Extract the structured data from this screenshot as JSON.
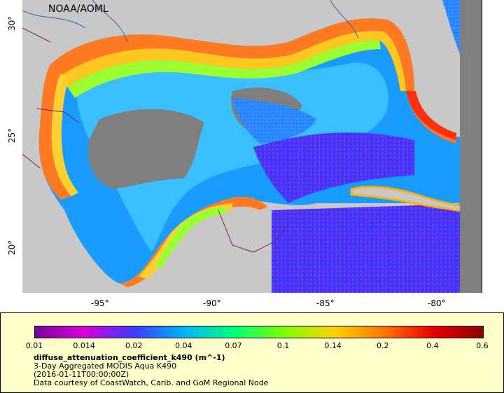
{
  "map": {
    "watermark": "NOAA/AOML",
    "x_ticks": [
      "-95°",
      "-90°",
      "-85°",
      "-80°"
    ],
    "y_ticks": [
      "30°",
      "25°",
      "20°"
    ],
    "colors": {
      "land": "#c8c8c8",
      "no_data": "#7f7f7f",
      "water_boundary": "#2e66a8",
      "border": "#7a1f5c"
    }
  },
  "legend": {
    "colorbar_labels": [
      "0.01",
      "0.014",
      "0.02",
      "0.04",
      "0.07",
      "0.1",
      "0.14",
      "0.2",
      "0.4",
      "0.6"
    ],
    "colorbar_colors": [
      "#7a00a0",
      "#d800d8",
      "#3c3cff",
      "#00b4ff",
      "#00ff7a",
      "#7aff00",
      "#ffd200",
      "#ff7800",
      "#e60000",
      "#8b0000"
    ],
    "variable": "diffuse_attenuation_coefficient_k490 (m^-1)",
    "product": "3-Day Aggregated MODIS Aqua K490",
    "time": "(2016-01-11T00:00:00Z)",
    "credit": "Data courtesy of CoastWatch, Carib. and GoM Regional Node"
  }
}
